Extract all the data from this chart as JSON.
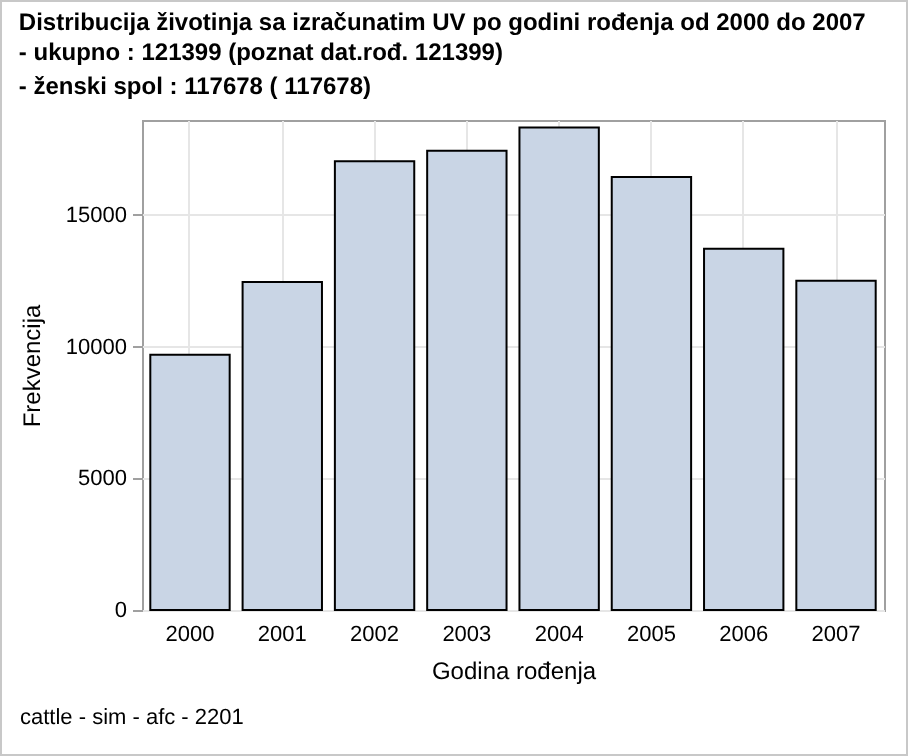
{
  "chart_data": {
    "type": "bar",
    "title": "Distribucija životinja sa izračunatim UV po godini rođenja od 2000 do 2007",
    "subtitle": "- ukupno :   121399 (poznat dat.rođ.   121399)\n- ženski spol :   117678 (  117678)",
    "xlabel": "Godina rođenja",
    "ylabel": "Frekvencija",
    "annotations": [
      "cattle - sim - afc - 2201"
    ],
    "categories": [
      "2000",
      "2001",
      "2002",
      "2003",
      "2004",
      "2005",
      "2006",
      "2007"
    ],
    "values": [
      9690,
      12450,
      17030,
      17430,
      18320,
      16440,
      13710,
      12500
    ],
    "color": "#c9d5e5",
    "ylim": [
      0,
      18600
    ],
    "yticks": [
      0,
      5000,
      10000,
      15000
    ],
    "grid": true
  }
}
